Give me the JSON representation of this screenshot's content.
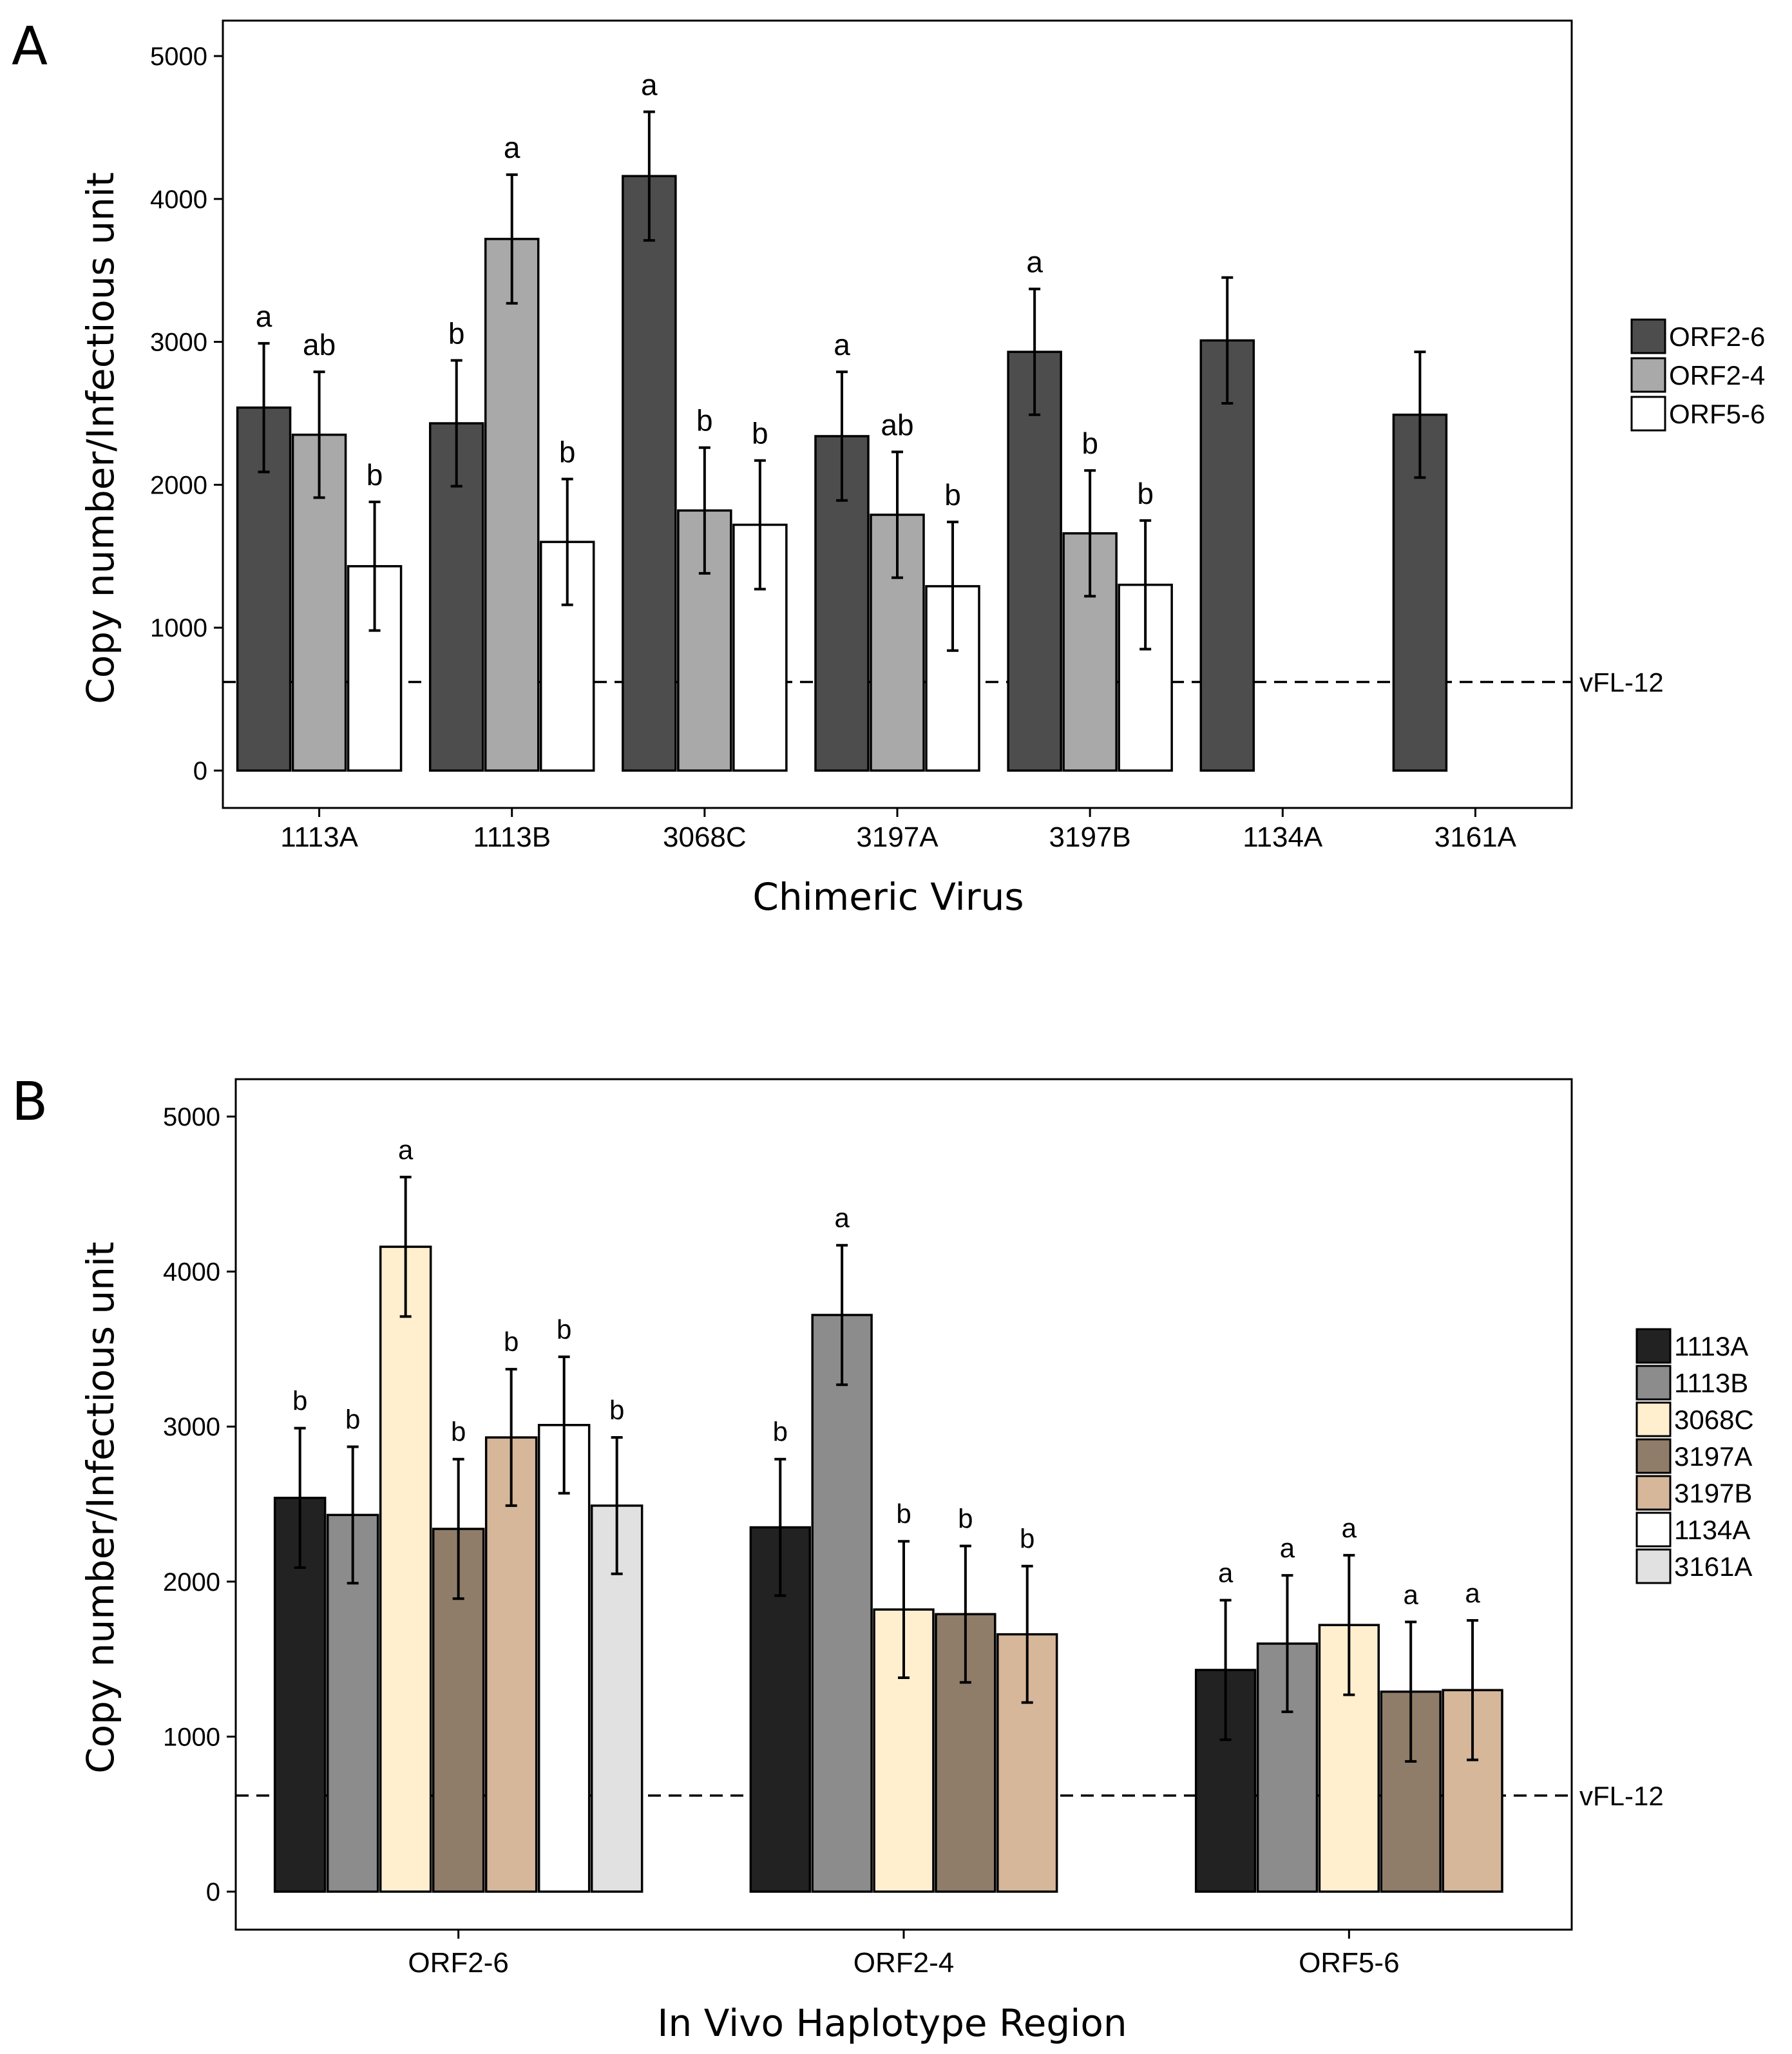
{
  "chart_data": [
    {
      "panel": "A",
      "type": "bar",
      "xlabel": "Chimeric Virus",
      "ylabel": "Copy number/Infectious unit",
      "ylim": [
        0,
        5000
      ],
      "yticks": [
        "0",
        "1000",
        "2000",
        "3000",
        "4000",
        "5000"
      ],
      "categories": [
        "1113A",
        "1113B",
        "3068C",
        "3197A",
        "3197B",
        "1134A",
        "3161A"
      ],
      "reference_line": {
        "value": 620,
        "label": "vFL-12"
      },
      "legend": {
        "position": "right",
        "entries": [
          "ORF2-6",
          "ORF2-4",
          "ORF5-6"
        ]
      },
      "series": [
        {
          "name": "ORF2-6",
          "color": "#4d4d4d",
          "values": [
            2540,
            2430,
            4160,
            2340,
            2930,
            3010,
            2490
          ],
          "errors": [
            450,
            440,
            450,
            450,
            440,
            440,
            440
          ],
          "letters": [
            "a",
            "b",
            "a",
            "a",
            "a",
            "",
            ""
          ]
        },
        {
          "name": "ORF2-4",
          "color": "#a9a9a9",
          "values": [
            2350,
            3720,
            1820,
            1790,
            1660,
            null,
            null
          ],
          "errors": [
            440,
            450,
            440,
            440,
            440,
            null,
            null
          ],
          "letters": [
            "ab",
            "a",
            "b",
            "ab",
            "b",
            "",
            ""
          ]
        },
        {
          "name": "ORF5-6",
          "color": "#ffffff",
          "values": [
            1430,
            1600,
            1720,
            1290,
            1300,
            null,
            null
          ],
          "errors": [
            450,
            440,
            450,
            450,
            450,
            null,
            null
          ],
          "letters": [
            "b",
            "b",
            "b",
            "b",
            "b",
            "",
            ""
          ]
        }
      ]
    },
    {
      "panel": "B",
      "type": "bar",
      "xlabel": "In Vivo Haplotype Region",
      "ylabel": "Copy number/Infectious unit",
      "ylim": [
        0,
        5000
      ],
      "yticks": [
        "0",
        "1000",
        "2000",
        "3000",
        "4000",
        "5000"
      ],
      "categories": [
        "ORF2-6",
        "ORF2-4",
        "ORF5-6"
      ],
      "reference_line": {
        "value": 620,
        "label": "vFL-12"
      },
      "legend": {
        "position": "right",
        "entries": [
          "1113A",
          "1113B",
          "3068C",
          "3197A",
          "3197B",
          "1134A",
          "3161A"
        ]
      },
      "groups": [
        {
          "name": "ORF2-6",
          "bars": [
            {
              "series": "1113A",
              "color": "#222222",
              "value": 2540,
              "error": 450,
              "letter": "b"
            },
            {
              "series": "1113B",
              "color": "#8c8c8c",
              "value": 2430,
              "error": 440,
              "letter": "b"
            },
            {
              "series": "3068C",
              "color": "#ffefcf",
              "value": 4160,
              "error": 450,
              "letter": "a"
            },
            {
              "series": "3197A",
              "color": "#8f7d69",
              "value": 2340,
              "error": 450,
              "letter": "b"
            },
            {
              "series": "3197B",
              "color": "#d6b79a",
              "value": 2930,
              "error": 440,
              "letter": "b"
            },
            {
              "series": "1134A",
              "color": "#ffffff",
              "value": 3010,
              "error": 440,
              "letter": "b"
            },
            {
              "series": "3161A",
              "color": "#e1e1e1",
              "value": 2490,
              "error": 440,
              "letter": "b"
            }
          ]
        },
        {
          "name": "ORF2-4",
          "bars": [
            {
              "series": "1113A",
              "color": "#222222",
              "value": 2350,
              "error": 440,
              "letter": "b"
            },
            {
              "series": "1113B",
              "color": "#8c8c8c",
              "value": 3720,
              "error": 450,
              "letter": "a"
            },
            {
              "series": "3068C",
              "color": "#ffefcf",
              "value": 1820,
              "error": 440,
              "letter": "b"
            },
            {
              "series": "3197A",
              "color": "#8f7d69",
              "value": 1790,
              "error": 440,
              "letter": "b"
            },
            {
              "series": "3197B",
              "color": "#d6b79a",
              "value": 1660,
              "error": 440,
              "letter": "b"
            }
          ]
        },
        {
          "name": "ORF5-6",
          "bars": [
            {
              "series": "1113A",
              "color": "#222222",
              "value": 1430,
              "error": 450,
              "letter": "a"
            },
            {
              "series": "1113B",
              "color": "#8c8c8c",
              "value": 1600,
              "error": 440,
              "letter": "a"
            },
            {
              "series": "3068C",
              "color": "#ffefcf",
              "value": 1720,
              "error": 450,
              "letter": "a"
            },
            {
              "series": "3197A",
              "color": "#8f7d69",
              "value": 1290,
              "error": 450,
              "letter": "a"
            },
            {
              "series": "3197B",
              "color": "#d6b79a",
              "value": 1300,
              "error": 450,
              "letter": "a"
            }
          ]
        }
      ]
    }
  ],
  "legend_colors_B": {
    "1113A": "#222222",
    "1113B": "#8c8c8c",
    "3068C": "#ffefcf",
    "3197A": "#8f7d69",
    "3197B": "#d6b79a",
    "1134A": "#ffffff",
    "3161A": "#e1e1e1"
  }
}
